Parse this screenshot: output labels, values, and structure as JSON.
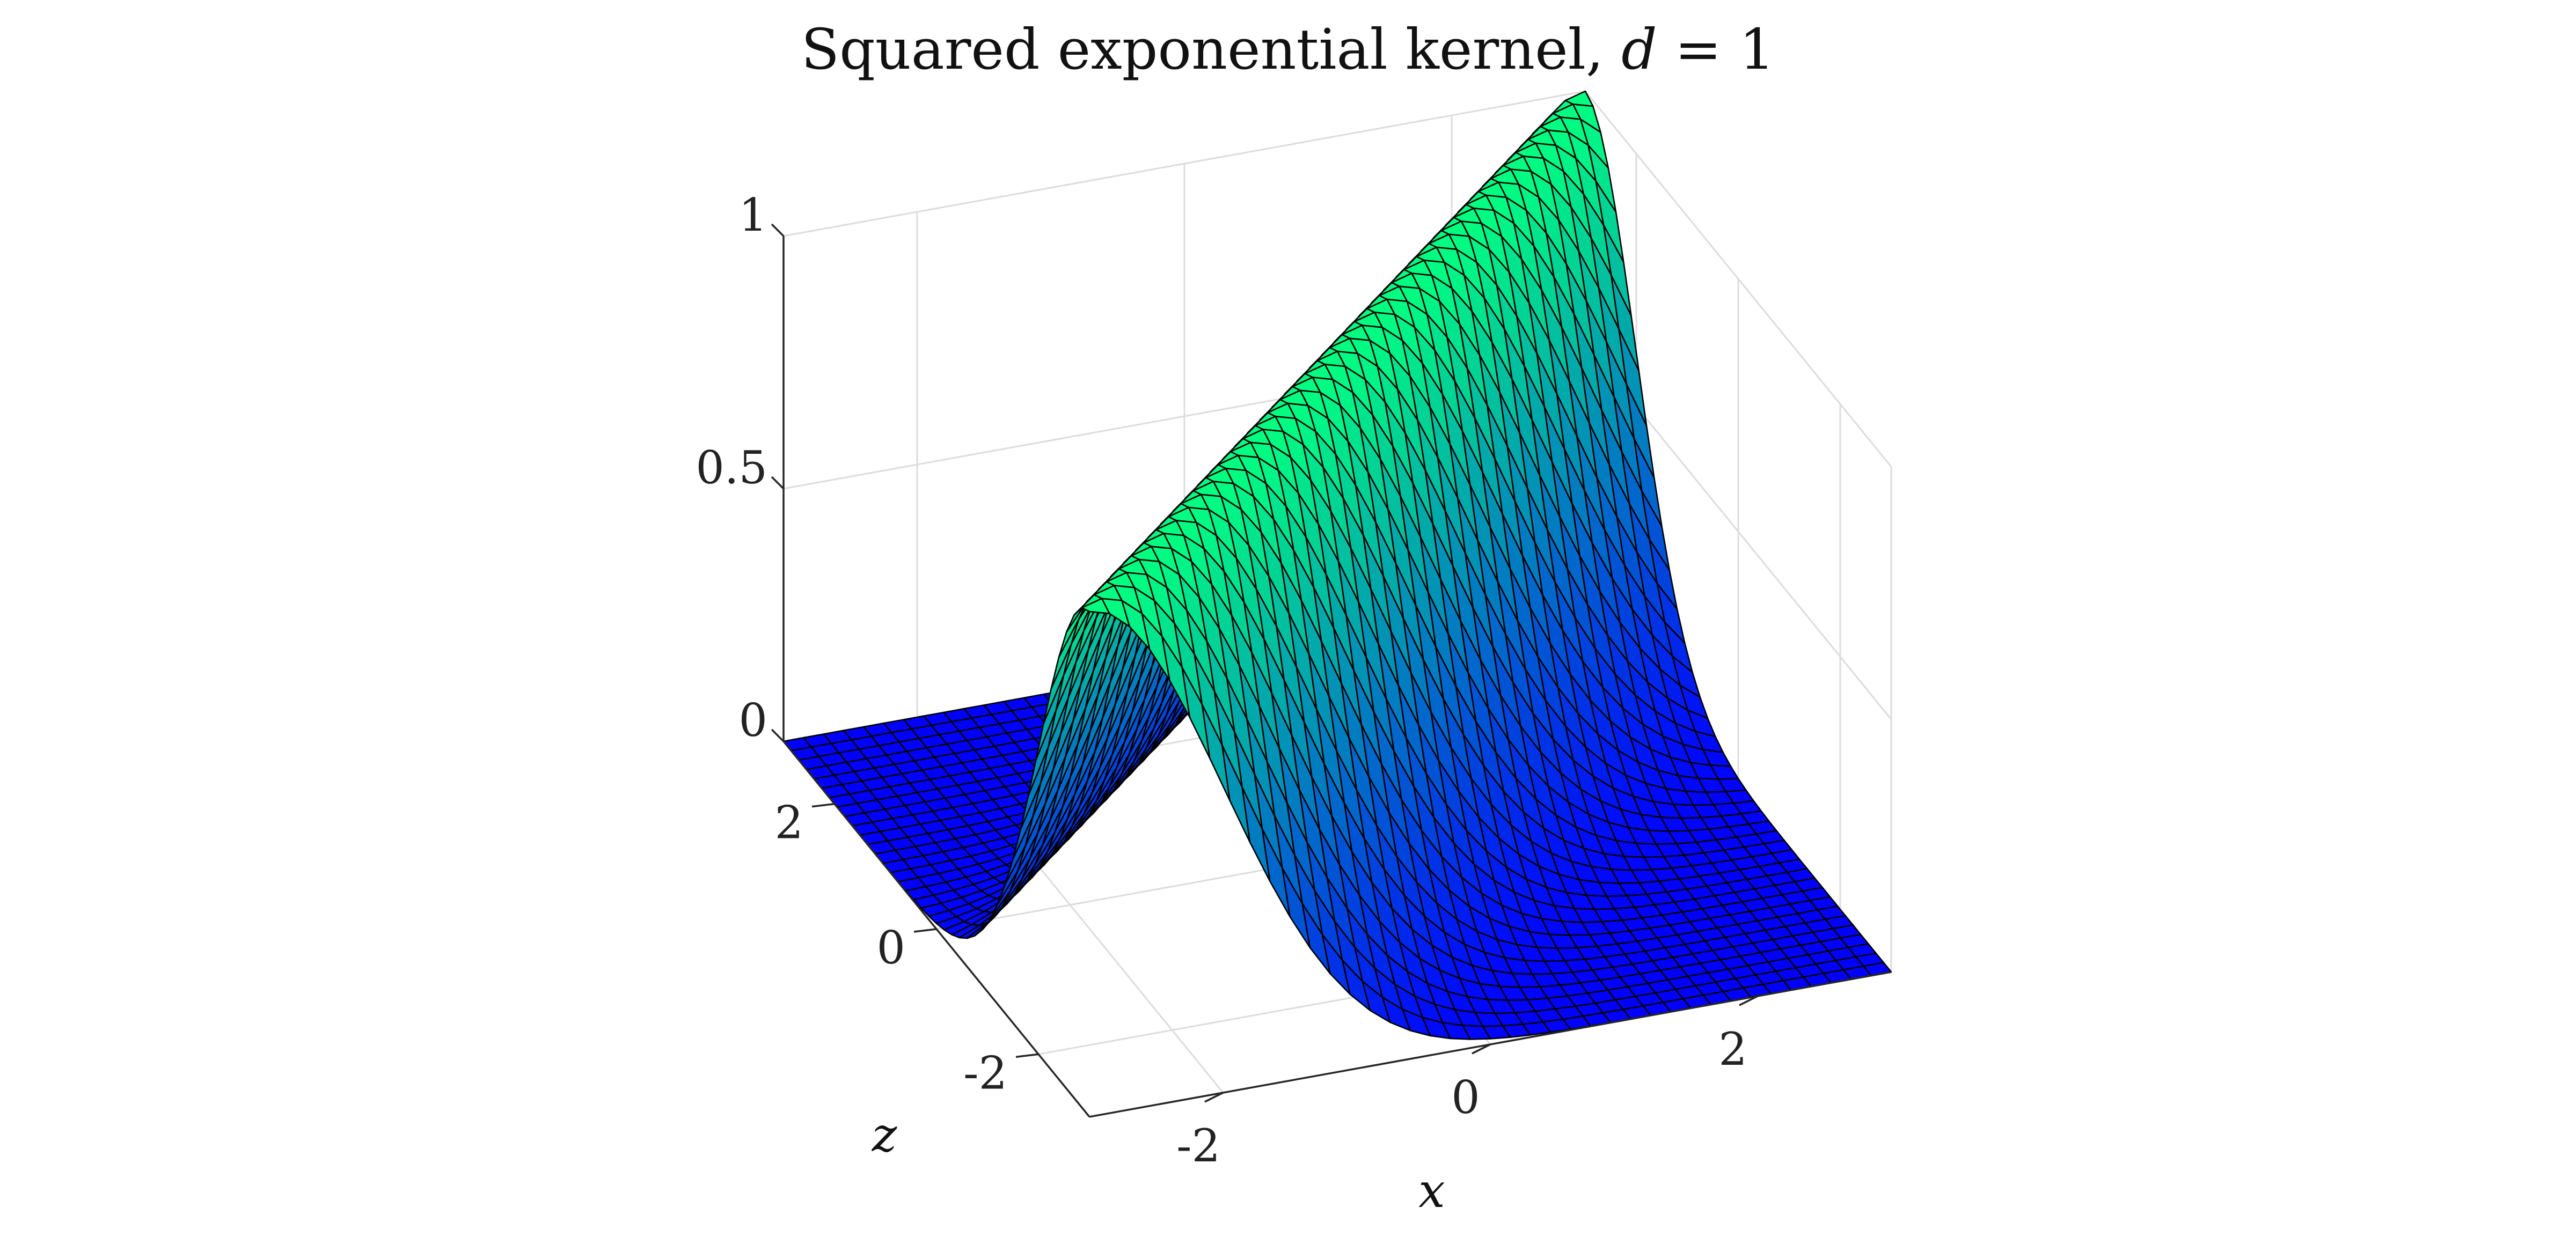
{
  "chart_data": {
    "type": "surface",
    "title": "Squared exponential kernel, d = 1",
    "title_parts": {
      "prefix": "Squared exponential kernel, ",
      "var": "d",
      "suffix": " = 1"
    },
    "xlabel": "x",
    "ylabel": "z",
    "zlabel": "",
    "xlim": [
      -3,
      3
    ],
    "ylim": [
      -3,
      3
    ],
    "zlim": [
      0,
      1
    ],
    "xticks": [
      -2,
      0,
      2
    ],
    "yticks": [
      -2,
      0,
      2
    ],
    "zticks": [
      0,
      0.5,
      1
    ],
    "xtick_labels": [
      "-2",
      "0",
      "2"
    ],
    "ytick_labels": [
      "-2",
      "0",
      "2"
    ],
    "ztick_labels": [
      "0",
      "0.5",
      "1"
    ],
    "function": "k(x, z) = exp(-(x - z)^2 / 2)",
    "grid_resolution": 41,
    "grid": true,
    "colormap": "winter",
    "colormap_low": "#0000ff",
    "colormap_high": "#00ff80",
    "edge_color": "#000000"
  }
}
